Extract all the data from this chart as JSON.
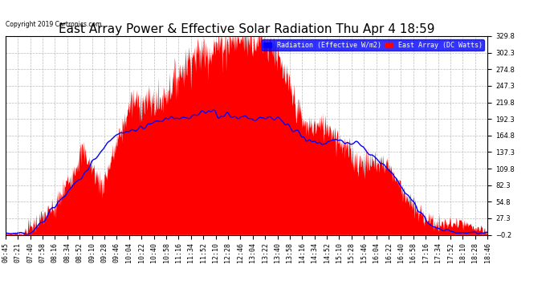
{
  "title": "East Array Power & Effective Solar Radiation Thu Apr 4 18:59",
  "copyright": "Copyright 2019 Cartronics.com",
  "legend_blue": "Radiation (Effective W/m2)",
  "legend_red": "East Array (DC Watts)",
  "ylim": [
    -0.2,
    329.8
  ],
  "yticks": [
    -0.2,
    27.3,
    54.8,
    82.3,
    109.8,
    137.3,
    164.8,
    192.3,
    219.8,
    247.3,
    274.8,
    302.3,
    329.8
  ],
  "bg_color": "#ffffff",
  "plot_bg_color": "#ffffff",
  "grid_color": "#bbbbbb",
  "red_color": "#ff0000",
  "blue_color": "#0000ff",
  "title_fontsize": 11,
  "tick_fontsize": 6,
  "xtick_labels": [
    "06:45",
    "07:21",
    "07:40",
    "07:58",
    "08:16",
    "08:34",
    "08:52",
    "09:10",
    "09:28",
    "09:46",
    "10:04",
    "10:22",
    "10:40",
    "10:58",
    "11:16",
    "11:34",
    "11:52",
    "12:10",
    "12:28",
    "12:46",
    "13:04",
    "13:22",
    "13:40",
    "13:58",
    "14:16",
    "14:34",
    "14:52",
    "15:10",
    "15:28",
    "15:46",
    "16:04",
    "16:22",
    "16:40",
    "16:58",
    "17:16",
    "17:34",
    "17:52",
    "18:10",
    "18:28",
    "18:46"
  ]
}
